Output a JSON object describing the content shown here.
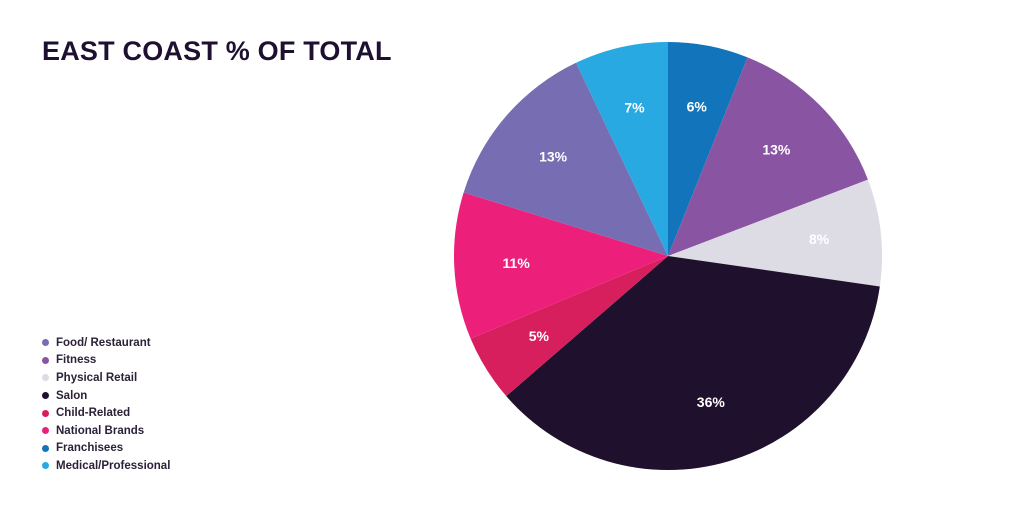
{
  "chart_data": {
    "type": "pie",
    "title": "EAST COAST % OF TOTAL",
    "legend_position": "bottom-left",
    "start_angle_deg": 0,
    "direction": "clockwise",
    "slices": [
      {
        "label": "Franchisees",
        "value": 6,
        "display": "6%",
        "color": "#1275bb"
      },
      {
        "label": "Fitness",
        "value": 13,
        "display": "13%",
        "color": "#8954a2"
      },
      {
        "label": "Physical Retail",
        "value": 8,
        "display": "8%",
        "color": "#dddbe4"
      },
      {
        "label": "Salon",
        "value": 36,
        "display": "36%",
        "color": "#1f102d"
      },
      {
        "label": "Child-Related",
        "value": 5,
        "display": "5%",
        "color": "#d81f5d"
      },
      {
        "label": "National Brands",
        "value": 11,
        "display": "11%",
        "color": "#ec207b"
      },
      {
        "label": "Food/ Restaurant",
        "value": 13,
        "display": "13%",
        "color": "#776db2"
      },
      {
        "label": "Medical/Professional",
        "value": 7,
        "display": "7%",
        "color": "#28a9e1"
      }
    ],
    "legend": [
      {
        "label": "Food/ Restaurant",
        "color": "#776db2"
      },
      {
        "label": "Fitness",
        "color": "#8954a2"
      },
      {
        "label": "Physical Retail",
        "color": "#dddbe4"
      },
      {
        "label": "Salon",
        "color": "#1f102d"
      },
      {
        "label": "Child-Related",
        "color": "#d81f5d"
      },
      {
        "label": "National Brands",
        "color": "#ec207b"
      },
      {
        "label": "Franchisees",
        "color": "#1275bb"
      },
      {
        "label": "Medical/Professional",
        "color": "#28a9e1"
      }
    ]
  }
}
